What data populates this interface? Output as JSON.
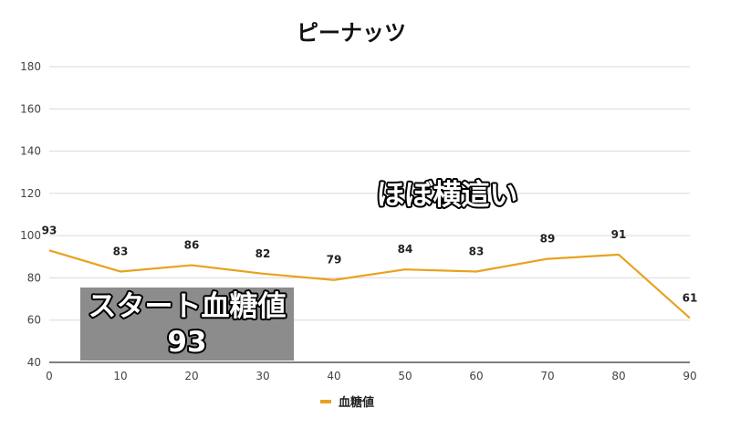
{
  "chart_data": {
    "type": "line",
    "title": "ピーナッツ",
    "x": [
      0,
      10,
      20,
      30,
      40,
      50,
      60,
      70,
      80,
      90
    ],
    "series": [
      {
        "name": "血糖値",
        "values": [
          93,
          83,
          86,
          82,
          79,
          84,
          83,
          89,
          91,
          61
        ],
        "color": "#e8a21f"
      }
    ],
    "xlim": [
      0,
      90
    ],
    "ylim": [
      40,
      180
    ],
    "xticks": [
      0,
      10,
      20,
      30,
      40,
      50,
      60,
      70,
      80,
      90
    ],
    "yticks": [
      40,
      60,
      80,
      100,
      120,
      140,
      160,
      180
    ],
    "grid": true,
    "legend_position": "bottom",
    "annotations": {
      "flat": "ほぼ横這い",
      "start_line1": "スタート血糖値",
      "start_line2": "93"
    },
    "annotation_box_color": "#8c8c8c"
  }
}
